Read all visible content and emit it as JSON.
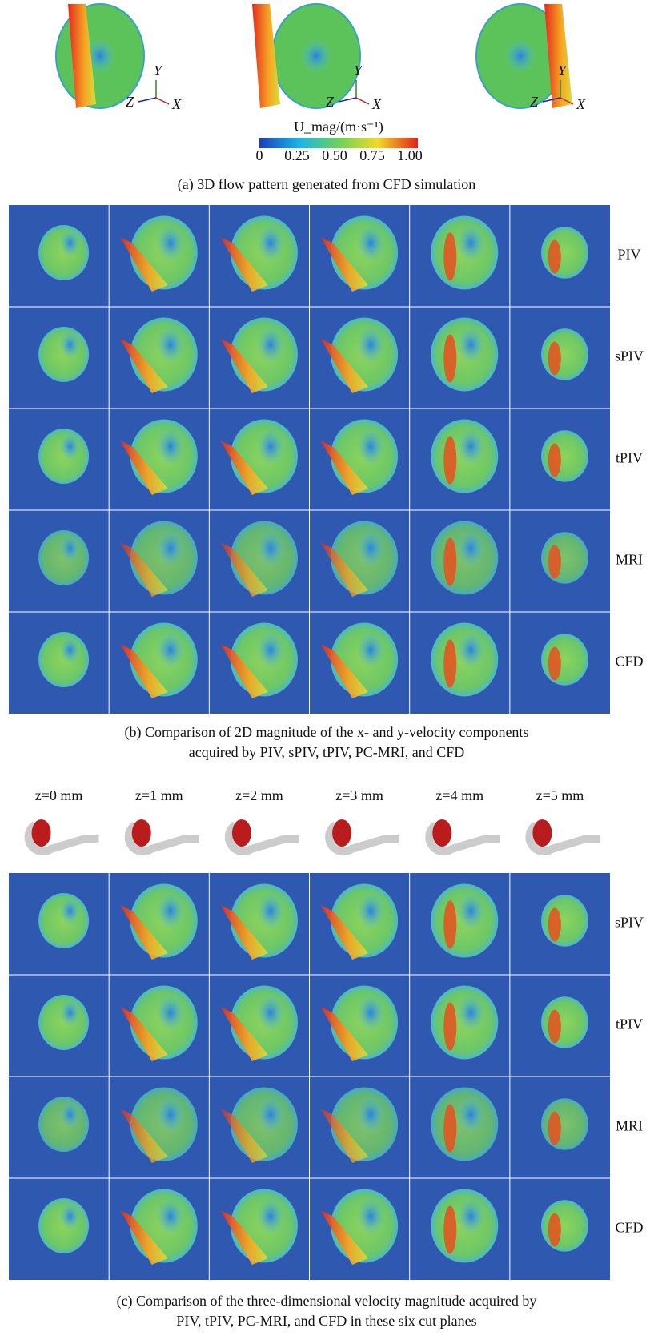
{
  "panel_a": {
    "triads": [
      {
        "y": "Y",
        "z": "Z",
        "x": "X"
      },
      {
        "y": "Y",
        "z": "Z",
        "x": "X"
      },
      {
        "y": "Y",
        "z": "Z",
        "x": "X"
      }
    ],
    "colorbar": {
      "label": "U_mag/(m·s⁻¹)",
      "ticks": [
        "0",
        "0.25",
        "0.50",
        "0.75",
        "1.00"
      ]
    },
    "caption": "(a) 3D flow pattern generated from CFD simulation"
  },
  "panel_b": {
    "row_labels": [
      "PIV",
      "sPIV",
      "tPIV",
      "MRI",
      "CFD"
    ],
    "caption": [
      "(b) Comparison of 2D magnitude of the x- and y-velocity components",
      "acquired by PIV, sPIV, tPIV, PC-MRI, and CFD"
    ]
  },
  "panel_c": {
    "planes": [
      "z=0 mm",
      "z=1 mm",
      "z=2 mm",
      "z=3 mm",
      "z=4 mm",
      "z=5 mm"
    ],
    "row_labels": [
      "sPIV",
      "tPIV",
      "MRI",
      "CFD"
    ],
    "caption": [
      "(c) Comparison of the three-dimensional velocity magnitude acquired by",
      "PIV, tPIV, PC-MRI, and CFD in these six cut planes"
    ]
  }
}
